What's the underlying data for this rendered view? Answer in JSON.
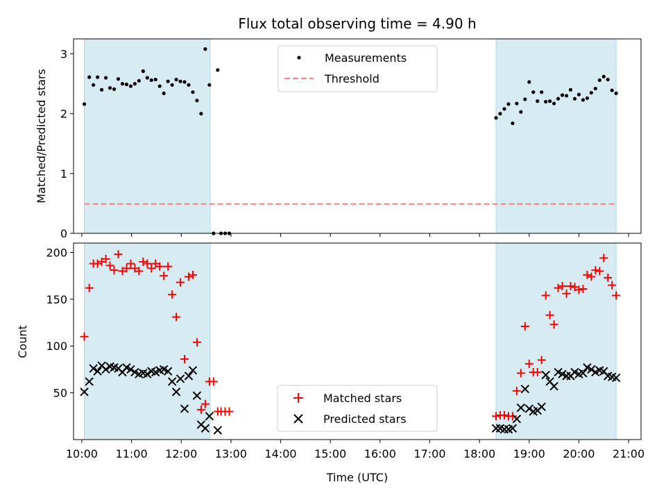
{
  "chart_data": {
    "type": "scatter",
    "title": "Flux total observing time = 4.90 h",
    "xlabel": "Time (UTC)",
    "xlim": [
      "09:50",
      "21:15"
    ],
    "x_ticks": [
      "10:00",
      "11:00",
      "12:00",
      "13:00",
      "14:00",
      "15:00",
      "16:00",
      "17:00",
      "18:00",
      "19:00",
      "20:00",
      "21:00"
    ],
    "shaded_intervals": [
      [
        "10:03",
        "12:35"
      ],
      [
        "18:20",
        "20:45"
      ]
    ],
    "shade_color": "#add8e6",
    "top_panel": {
      "ylabel": "Matched/Predicted stars",
      "ylim": [
        0,
        3.25
      ],
      "y_ticks": [
        "0",
        "1",
        "2",
        "3"
      ],
      "legend": [
        "Measurements",
        "Threshold"
      ],
      "legend_position": "top-center",
      "threshold": 0.49,
      "threshold_color": "#ff7f7f",
      "measurements": [
        [
          "10:03",
          2.16
        ],
        [
          "10:09",
          2.61
        ],
        [
          "10:14",
          2.48
        ],
        [
          "10:19",
          2.61
        ],
        [
          "10:24",
          2.4
        ],
        [
          "10:29",
          2.6
        ],
        [
          "10:34",
          2.43
        ],
        [
          "10:39",
          2.41
        ],
        [
          "10:44",
          2.58
        ],
        [
          "10:49",
          2.5
        ],
        [
          "10:54",
          2.49
        ],
        [
          "10:59",
          2.46
        ],
        [
          "11:04",
          2.5
        ],
        [
          "11:09",
          2.55
        ],
        [
          "11:14",
          2.71
        ],
        [
          "11:19",
          2.6
        ],
        [
          "11:24",
          2.56
        ],
        [
          "11:29",
          2.57
        ],
        [
          "11:34",
          2.46
        ],
        [
          "11:39",
          2.34
        ],
        [
          "11:44",
          2.54
        ],
        [
          "11:49",
          2.48
        ],
        [
          "11:54",
          2.57
        ],
        [
          "11:59",
          2.54
        ],
        [
          "12:04",
          2.53
        ],
        [
          "12:09",
          2.48
        ],
        [
          "12:14",
          2.36
        ],
        [
          "12:19",
          2.22
        ],
        [
          "12:24",
          2.0
        ],
        [
          "12:29",
          3.08
        ],
        [
          "12:34",
          2.48
        ],
        [
          "12:39",
          0.0
        ],
        [
          "12:44",
          2.73
        ],
        [
          "12:48",
          0.0
        ],
        [
          "12:53",
          0.0
        ],
        [
          "12:58",
          0.0
        ],
        [
          "18:20",
          1.93
        ],
        [
          "18:25",
          2.0
        ],
        [
          "18:30",
          2.08
        ],
        [
          "18:35",
          2.16
        ],
        [
          "18:40",
          1.84
        ],
        [
          "18:45",
          2.17
        ],
        [
          "18:50",
          2.03
        ],
        [
          "18:55",
          2.24
        ],
        [
          "19:00",
          2.53
        ],
        [
          "19:05",
          2.36
        ],
        [
          "19:10",
          2.21
        ],
        [
          "19:15",
          2.36
        ],
        [
          "19:20",
          2.2
        ],
        [
          "19:25",
          2.21
        ],
        [
          "19:30",
          2.17
        ],
        [
          "19:35",
          2.25
        ],
        [
          "19:40",
          2.31
        ],
        [
          "19:45",
          2.3
        ],
        [
          "19:50",
          2.4
        ],
        [
          "19:55",
          2.25
        ],
        [
          "20:00",
          2.32
        ],
        [
          "20:05",
          2.23
        ],
        [
          "20:10",
          2.26
        ],
        [
          "20:15",
          2.35
        ],
        [
          "20:20",
          2.42
        ],
        [
          "20:25",
          2.56
        ],
        [
          "20:30",
          2.62
        ],
        [
          "20:35",
          2.57
        ],
        [
          "20:40",
          2.39
        ],
        [
          "20:45",
          2.34
        ]
      ]
    },
    "bottom_panel": {
      "ylabel": "Count",
      "ylim": [
        0,
        210
      ],
      "y_ticks": [
        "50",
        "100",
        "150",
        "200"
      ],
      "legend_position": "bottom-center",
      "series": [
        {
          "name": "Matched stars",
          "marker": "+",
          "color": "#ff0000",
          "points": [
            [
              "10:03",
              110
            ],
            [
              "10:09",
              162
            ],
            [
              "10:14",
              188
            ],
            [
              "10:19",
              188
            ],
            [
              "10:24",
              190
            ],
            [
              "10:29",
              193
            ],
            [
              "10:34",
              186
            ],
            [
              "10:39",
              181
            ],
            [
              "10:44",
              198
            ],
            [
              "10:49",
              180
            ],
            [
              "10:54",
              183
            ],
            [
              "10:59",
              188
            ],
            [
              "11:04",
              183
            ],
            [
              "11:09",
              180
            ],
            [
              "11:14",
              190
            ],
            [
              "11:19",
              188
            ],
            [
              "11:24",
              183
            ],
            [
              "11:29",
              188
            ],
            [
              "11:34",
              185
            ],
            [
              "11:39",
              175
            ],
            [
              "11:44",
              185
            ],
            [
              "11:49",
              155
            ],
            [
              "11:54",
              131
            ],
            [
              "11:59",
              168
            ],
            [
              "12:04",
              86
            ],
            [
              "12:09",
              174
            ],
            [
              "12:14",
              176
            ],
            [
              "12:19",
              104
            ],
            [
              "12:24",
              32
            ],
            [
              "12:29",
              38
            ],
            [
              "12:34",
              62
            ],
            [
              "12:39",
              62
            ],
            [
              "12:44",
              30
            ],
            [
              "12:48",
              30
            ],
            [
              "12:53",
              30
            ],
            [
              "12:58",
              30
            ],
            [
              "18:20",
              25
            ],
            [
              "18:25",
              26
            ],
            [
              "18:30",
              26
            ],
            [
              "18:35",
              25
            ],
            [
              "18:40",
              25
            ],
            [
              "18:45",
              52
            ],
            [
              "18:50",
              71
            ],
            [
              "18:55",
              121
            ],
            [
              "19:00",
              81
            ],
            [
              "19:05",
              72
            ],
            [
              "19:10",
              72
            ],
            [
              "19:15",
              85
            ],
            [
              "19:20",
              154
            ],
            [
              "19:25",
              133
            ],
            [
              "19:30",
              123
            ],
            [
              "19:35",
              162
            ],
            [
              "19:40",
              164
            ],
            [
              "19:45",
              156
            ],
            [
              "19:50",
              164
            ],
            [
              "19:55",
              163
            ],
            [
              "20:00",
              160
            ],
            [
              "20:05",
              161
            ],
            [
              "20:10",
              176
            ],
            [
              "20:15",
              174
            ],
            [
              "20:20",
              181
            ],
            [
              "20:25",
              180
            ],
            [
              "20:30",
              194
            ],
            [
              "20:35",
              173
            ],
            [
              "20:40",
              165
            ],
            [
              "20:45",
              154
            ]
          ]
        },
        {
          "name": "Predicted stars",
          "marker": "x",
          "color": "#000000",
          "points": [
            [
              "10:03",
              51
            ],
            [
              "10:09",
              62
            ],
            [
              "10:14",
              76
            ],
            [
              "10:19",
              73
            ],
            [
              "10:24",
              79
            ],
            [
              "10:29",
              75
            ],
            [
              "10:34",
              78
            ],
            [
              "10:39",
              77
            ],
            [
              "10:44",
              76
            ],
            [
              "10:49",
              72
            ],
            [
              "10:54",
              77
            ],
            [
              "10:59",
              75
            ],
            [
              "11:04",
              72
            ],
            [
              "11:09",
              70
            ],
            [
              "11:14",
              71
            ],
            [
              "11:19",
              70
            ],
            [
              "11:24",
              73
            ],
            [
              "11:29",
              72
            ],
            [
              "11:34",
              74
            ],
            [
              "11:39",
              75
            ],
            [
              "11:44",
              73
            ],
            [
              "11:49",
              62
            ],
            [
              "11:54",
              51
            ],
            [
              "11:59",
              65
            ],
            [
              "12:04",
              33
            ],
            [
              "12:09",
              68
            ],
            [
              "12:14",
              74
            ],
            [
              "12:19",
              47
            ],
            [
              "12:24",
              16
            ],
            [
              "12:29",
              12
            ],
            [
              "12:34",
              25
            ],
            [
              "12:44",
              10
            ],
            [
              "18:20",
              12
            ],
            [
              "18:25",
              12
            ],
            [
              "18:30",
              11
            ],
            [
              "18:35",
              11
            ],
            [
              "18:40",
              12
            ],
            [
              "18:45",
              22
            ],
            [
              "18:50",
              34
            ],
            [
              "18:55",
              54
            ],
            [
              "19:00",
              33
            ],
            [
              "19:05",
              30
            ],
            [
              "19:10",
              31
            ],
            [
              "19:15",
              35
            ],
            [
              "19:20",
              69
            ],
            [
              "19:25",
              62
            ],
            [
              "19:30",
              57
            ],
            [
              "19:35",
              72
            ],
            [
              "19:40",
              70
            ],
            [
              "19:45",
              68
            ],
            [
              "19:50",
              68
            ],
            [
              "19:55",
              72
            ],
            [
              "20:00",
              70
            ],
            [
              "20:05",
              71
            ],
            [
              "20:10",
              77
            ],
            [
              "20:15",
              75
            ],
            [
              "20:20",
              72
            ],
            [
              "20:25",
              74
            ],
            [
              "20:30",
              73
            ],
            [
              "20:35",
              68
            ],
            [
              "20:40",
              67
            ],
            [
              "20:45",
              66
            ]
          ]
        }
      ]
    }
  }
}
